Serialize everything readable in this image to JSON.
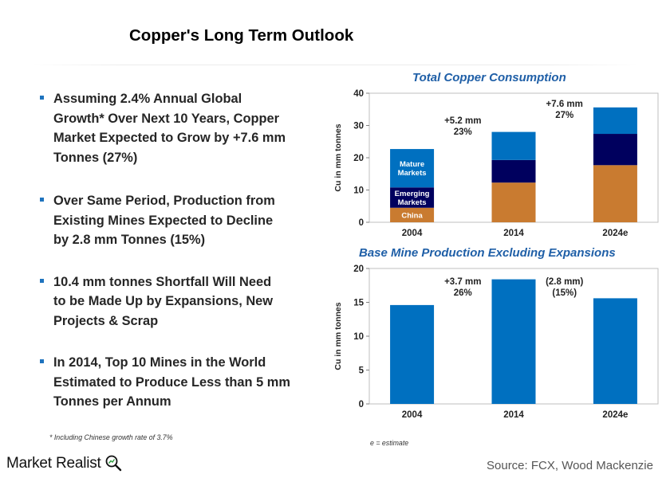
{
  "title": "Copper's Long Term Outlook",
  "bullets": [
    {
      "lines": [
        "Assuming 2.4% Annual Global",
        "Growth* Over Next 10 Years, Copper",
        "Market Expected to Grow by +7.6 mm",
        "Tonnes (27%)"
      ]
    },
    {
      "lines": [
        "Over Same Period, Production from",
        "Existing Mines Expected to Decline",
        "by 2.8 mm Tonnes (15%)"
      ]
    },
    {
      "lines": [
        "10.4 mm tonnes Shortfall Will Need",
        "to be Made Up by Expansions, New",
        "Projects & Scrap"
      ]
    },
    {
      "lines": [
        "In 2014, Top 10 Mines in the World",
        "Estimated to Produce Less than 5 mm",
        "Tonnes per Annum"
      ]
    }
  ],
  "footnote": "* Including Chinese growth rate of 3.7%",
  "estimate_note": "e = estimate",
  "logo_text": "Market Realist",
  "source": "Source: FCX, Wood Mackenzie",
  "colors": {
    "china": "#c97b30",
    "emerging": "#00005e",
    "mature": "#0070c0",
    "bar": "#0070c0",
    "title_blue": "#1f5fa7"
  },
  "chart_data": [
    {
      "type": "bar",
      "stacked": true,
      "title": "Total Copper Consumption",
      "ylabel": "Cu in mm tonnes",
      "categories": [
        "2004",
        "2014",
        "2024e"
      ],
      "ylim": [
        0,
        40
      ],
      "yticks": [
        0,
        10,
        20,
        30,
        40
      ],
      "series": [
        {
          "name": "China",
          "color_key": "china",
          "values": [
            4.5,
            12.3,
            17.7
          ]
        },
        {
          "name": "Emerging Markets",
          "color_key": "emerging",
          "values": [
            6.3,
            7.0,
            9.7
          ]
        },
        {
          "name": "Mature Markets",
          "color_key": "mature",
          "values": [
            11.9,
            8.7,
            8.2
          ]
        }
      ],
      "annotations": [
        {
          "lines": [
            "+5.2 mm",
            "23%"
          ],
          "between": [
            "2004",
            "2014"
          ]
        },
        {
          "lines": [
            "+7.6 mm",
            "27%"
          ],
          "between": [
            "2014",
            "2024e"
          ]
        }
      ]
    },
    {
      "type": "bar",
      "title": "Base Mine Production Excluding Expansions",
      "ylabel": "Cu in mm tonnes",
      "categories": [
        "2004",
        "2014",
        "2024e"
      ],
      "ylim": [
        0,
        20
      ],
      "yticks": [
        0,
        5,
        10,
        15,
        20
      ],
      "values": [
        14.6,
        18.4,
        15.6
      ],
      "annotations": [
        {
          "lines": [
            "+3.7 mm",
            "26%"
          ],
          "between": [
            "2004",
            "2014"
          ]
        },
        {
          "lines": [
            "(2.8 mm)",
            "(15%)"
          ],
          "between": [
            "2014",
            "2024e"
          ]
        }
      ]
    }
  ]
}
